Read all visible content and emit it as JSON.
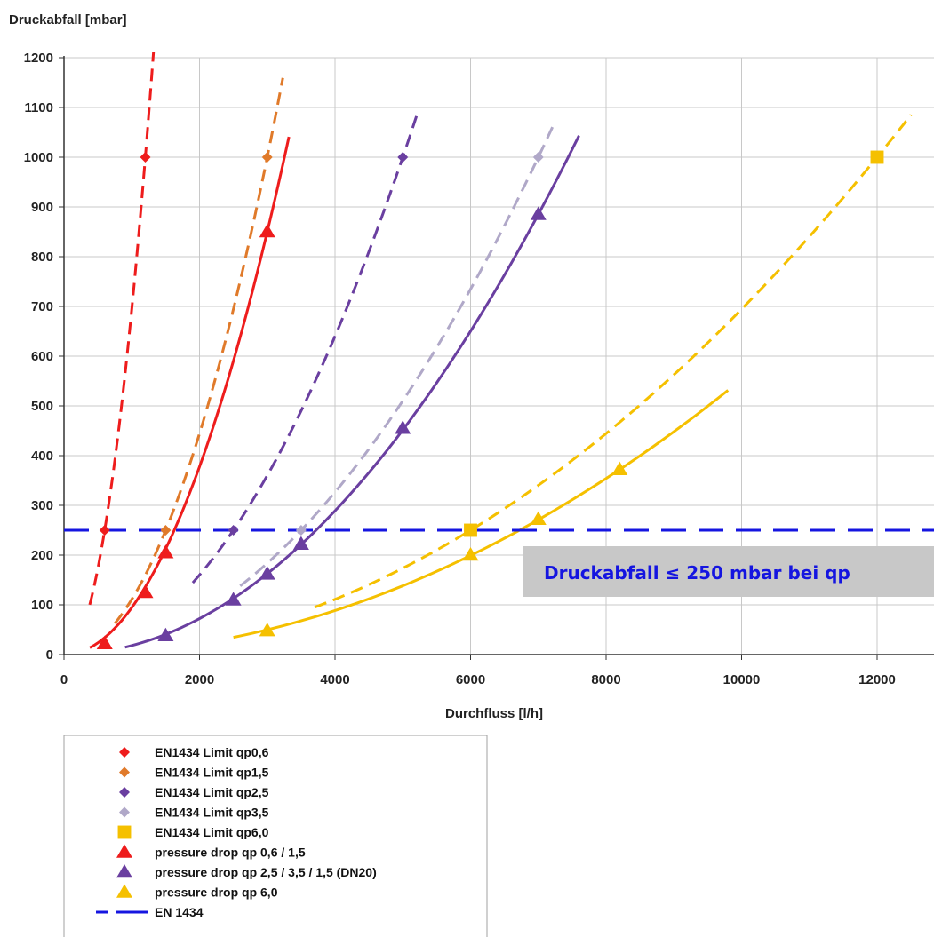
{
  "chart_data": {
    "type": "line",
    "xlabel": "Durchfluss [l/h]",
    "ylabel": "Druckabfall [mbar]",
    "xlim": [
      0,
      13000
    ],
    "ylim": [
      0,
      1200
    ],
    "x_ticks": [
      0,
      2000,
      4000,
      6000,
      8000,
      10000,
      12000
    ],
    "y_ticks": [
      0,
      100,
      200,
      300,
      400,
      500,
      600,
      700,
      800,
      900,
      1000,
      1100,
      1200
    ],
    "grid": true,
    "legend_position": "bottom-left",
    "annotation": {
      "text": "Druckabfall ≤ 250 mbar bei qp",
      "background": "#c8c8c8",
      "color": "#1515e0"
    },
    "series": [
      {
        "name": "EN1434 Limit qp0,6",
        "marker": "diamond",
        "color": "#ee1c1c",
        "line": "dashed",
        "points": [
          [
            600,
            250
          ],
          [
            1200,
            1000
          ]
        ],
        "curve": {
          "q": 1200,
          "p": 1000,
          "xmin": 380,
          "xmax": 1330
        }
      },
      {
        "name": "EN1434 Limit qp1,5",
        "marker": "diamond",
        "color": "#e07a2a",
        "line": "dashed",
        "points": [
          [
            1500,
            250
          ],
          [
            3000,
            1000
          ]
        ],
        "curve": {
          "q": 3000,
          "p": 1000,
          "xmin": 750,
          "xmax": 3230
        }
      },
      {
        "name": "EN1434 Limit qp2,5",
        "marker": "diamond",
        "color": "#6a3fa0",
        "line": "dashed",
        "points": [
          [
            2500,
            250
          ],
          [
            5000,
            1000
          ]
        ],
        "curve": {
          "q": 5000,
          "p": 1000,
          "xmin": 1900,
          "xmax": 5230
        }
      },
      {
        "name": "EN1434 Limit qp3,5",
        "marker": "diamond",
        "color": "#b0a8c8",
        "line": "dashed",
        "points": [
          [
            3500,
            250
          ],
          [
            7000,
            1000
          ]
        ],
        "curve": {
          "q": 7000,
          "p": 1000,
          "xmin": 2600,
          "xmax": 7250
        }
      },
      {
        "name": "EN1434 Limit qp6,0",
        "marker": "square",
        "color": "#f5c000",
        "line": "dashed",
        "points": [
          [
            6000,
            250
          ],
          [
            12000,
            1000
          ]
        ],
        "curve": {
          "q": 12000,
          "p": 1000,
          "xmin": 3700,
          "xmax": 12500
        }
      },
      {
        "name": "pressure drop qp 0,6 / 1,5",
        "marker": "triangle",
        "color": "#ee1c1c",
        "line": "solid",
        "points": [
          [
            600,
            22
          ],
          [
            1200,
            125
          ],
          [
            1500,
            205
          ],
          [
            3000,
            850
          ]
        ],
        "curve": {
          "q": 3000,
          "p": 850,
          "xmin": 380,
          "xmax": 3320
        }
      },
      {
        "name": "pressure drop qp 2,5 / 3,5 / 1,5 (DN20)",
        "marker": "triangle",
        "color": "#6a3fa0",
        "line": "solid",
        "points": [
          [
            1500,
            38
          ],
          [
            2500,
            110
          ],
          [
            3000,
            162
          ],
          [
            3500,
            222
          ],
          [
            5000,
            455
          ],
          [
            7000,
            885
          ]
        ],
        "curve": {
          "q": 7000,
          "p": 885,
          "xmin": 900,
          "xmax": 7600
        }
      },
      {
        "name": "pressure drop qp 6,0",
        "marker": "triangle",
        "color": "#f5c000",
        "line": "solid",
        "points": [
          [
            3000,
            48
          ],
          [
            6000,
            200
          ],
          [
            7000,
            272
          ],
          [
            8200,
            372
          ]
        ],
        "curve": {
          "q": 8200,
          "p": 372,
          "xmin": 2500,
          "xmax": 9800
        }
      },
      {
        "name": "EN 1434",
        "marker": "none",
        "color": "#1515e0",
        "line": "long-dash",
        "points": [
          [
            0,
            250
          ],
          [
            13000,
            250
          ]
        ]
      }
    ]
  }
}
